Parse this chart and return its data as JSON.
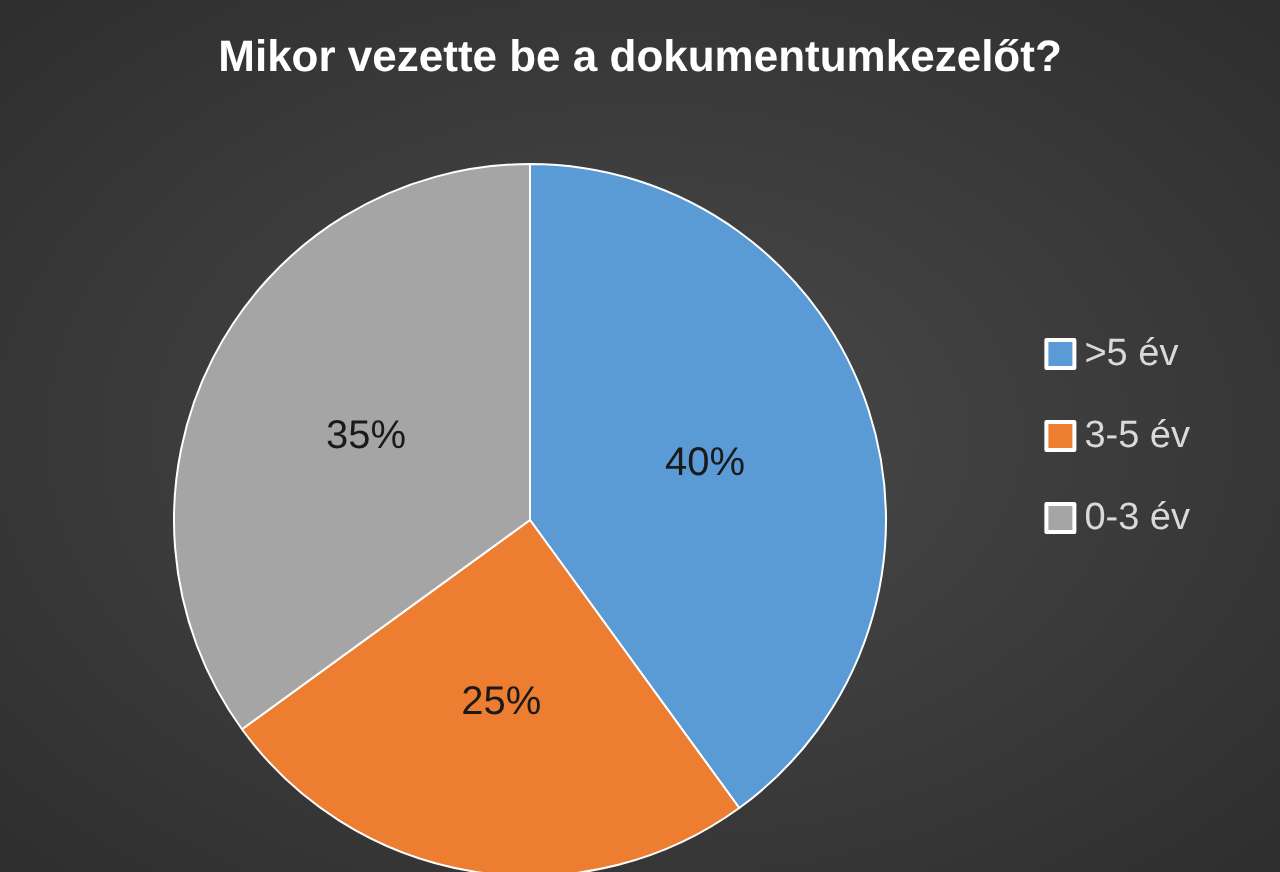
{
  "chart_data": {
    "type": "pie",
    "title": "Mikor vezette be a dokumentumkezelőt?",
    "categories": [
      ">5 év",
      "3-5 év",
      "0-3 év"
    ],
    "values": [
      40,
      25,
      35
    ],
    "colors": [
      "#5b9bd5",
      "#ed7d31",
      "#a5a5a5"
    ],
    "value_labels": [
      "40%",
      "25%",
      "35%"
    ],
    "legend": "right"
  }
}
